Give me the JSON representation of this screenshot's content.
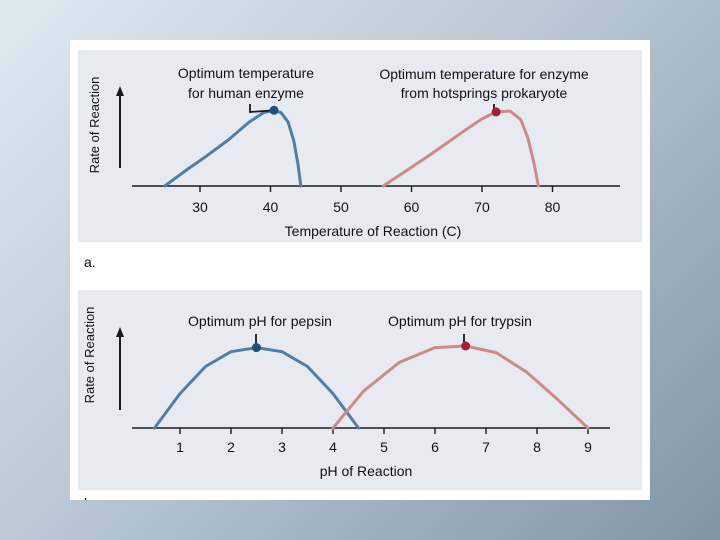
{
  "colors": {
    "panel_bg": "#e7ebf1",
    "blue_curve": "#4f7ea8",
    "red_curve": "#d08989",
    "blue_dot": "#1e4f7d",
    "red_dot": "#a41d36",
    "axis": "#1a1a1a"
  },
  "chart_data": [
    {
      "type": "line",
      "panel_label": "a.",
      "xlabel": "Temperature of Reaction (C)",
      "ylabel": "Rate of Reaction",
      "x_ticks": [
        "30",
        "40",
        "50",
        "60",
        "70",
        "80"
      ],
      "xlim": [
        20,
        85
      ],
      "ylim": [
        0,
        1
      ],
      "series": [
        {
          "color": "#4f7ea8",
          "x": [
            25,
            28,
            31,
            34,
            37,
            39,
            40.5,
            41.5,
            42.5,
            43.3,
            43.9,
            44.3
          ],
          "y": [
            0.0,
            0.2,
            0.39,
            0.59,
            0.82,
            0.94,
            0.97,
            0.94,
            0.82,
            0.58,
            0.28,
            0.0
          ]
        },
        {
          "color": "#d08989",
          "x": [
            56,
            59,
            62,
            65,
            68,
            70,
            72,
            74,
            75.5,
            76.5,
            77.3,
            78
          ],
          "y": [
            0.0,
            0.18,
            0.36,
            0.55,
            0.74,
            0.86,
            0.95,
            0.96,
            0.85,
            0.62,
            0.32,
            0.0
          ]
        }
      ],
      "annotations": [
        {
          "text": "Optimum temperature for human enzyme",
          "lines": [
            "Optimum temperature",
            "for human enzyme"
          ],
          "x": 40.5,
          "y": 0.97,
          "color": "#1e4f7d"
        },
        {
          "text": "Optimum temperature for enzyme from hotsprings prokaryote",
          "lines": [
            "Optimum temperature for enzyme",
            "from hotsprings prokaryote"
          ],
          "x": 72,
          "y": 0.95,
          "color": "#a41d36"
        }
      ]
    },
    {
      "type": "line",
      "panel_label": "b.",
      "xlabel": "pH of Reaction",
      "ylabel": "Rate of Reaction",
      "x_ticks": [
        "1",
        "2",
        "3",
        "4",
        "5",
        "6",
        "7",
        "8",
        "9"
      ],
      "xlim": [
        0.3,
        9.2
      ],
      "ylim": [
        0,
        1
      ],
      "series": [
        {
          "color": "#4f7ea8",
          "x": [
            0.5,
            1.0,
            1.5,
            2.0,
            2.5,
            3.0,
            3.5,
            4.0,
            4.5
          ],
          "y": [
            0.0,
            0.42,
            0.75,
            0.93,
            0.98,
            0.93,
            0.75,
            0.42,
            0.0
          ]
        },
        {
          "color": "#d08989",
          "x": [
            4.0,
            4.6,
            5.3,
            6.0,
            6.6,
            7.2,
            7.8,
            8.4,
            9.0
          ],
          "y": [
            0.0,
            0.45,
            0.8,
            0.98,
            1.0,
            0.92,
            0.68,
            0.35,
            0.0
          ]
        }
      ],
      "annotations": [
        {
          "text": "Optimum pH for pepsin",
          "lines": [
            "Optimum pH for pepsin"
          ],
          "x": 2.5,
          "y": 0.98,
          "color": "#1e4f7d"
        },
        {
          "text": "Optimum pH for trypsin",
          "lines": [
            "Optimum pH for trypsin"
          ],
          "x": 6.6,
          "y": 1.0,
          "color": "#a41d36"
        }
      ]
    }
  ]
}
